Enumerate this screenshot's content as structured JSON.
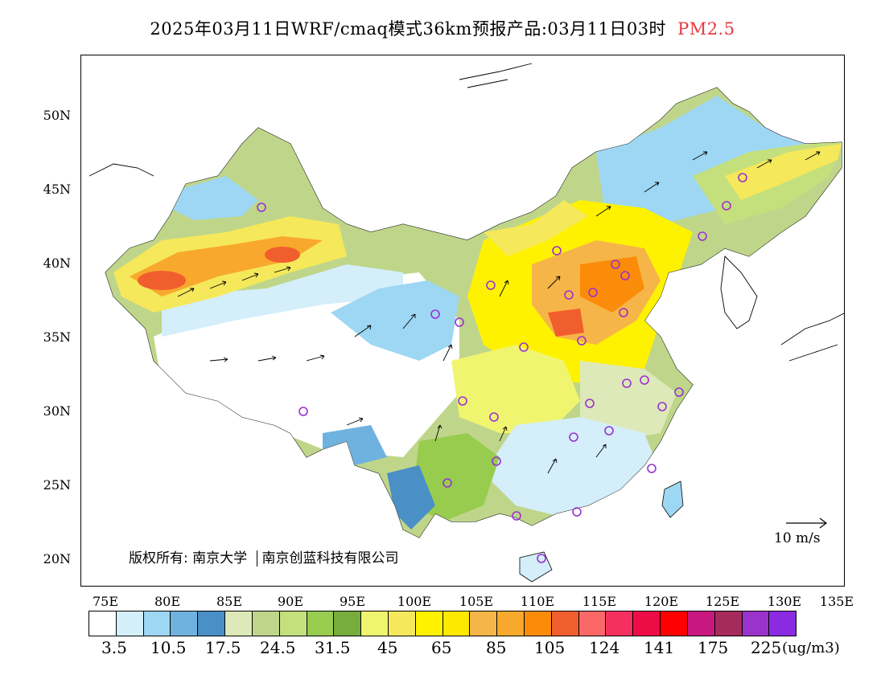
{
  "title": {
    "main": "2025年03月11日WRF/cmaq模式36km预报产品:03月11日03时",
    "species": "PM2.5",
    "species_color": "#e8383d"
  },
  "axes": {
    "lat_labels": [
      "50N",
      "45N",
      "40N",
      "35N",
      "30N",
      "25N",
      "20N"
    ],
    "lon_labels": [
      "75E",
      "80E",
      "85E",
      "90E",
      "95E",
      "100E",
      "105E",
      "110E",
      "115E",
      "120E",
      "125E",
      "130E",
      "135E"
    ]
  },
  "copyright": {
    "left": "版权所有: 南京大学",
    "right": "南京创蓝科技有限公司"
  },
  "wind_scale": {
    "label": "10 m/s"
  },
  "legend": {
    "unit": "(ug/m3)",
    "labels": [
      "3.5",
      "10.5",
      "17.5",
      "24.5",
      "31.5",
      "45",
      "65",
      "85",
      "105",
      "124",
      "141",
      "175",
      "225"
    ],
    "colors": [
      "#ffffff",
      "#d4eefa",
      "#9ed7f3",
      "#6fb2e0",
      "#4a8fc6",
      "#dde9b8",
      "#bfd68a",
      "#c4e07d",
      "#98cc4f",
      "#76ad3c",
      "#f0f56f",
      "#f5e85a",
      "#fff200",
      "#fde800",
      "#f6b548",
      "#f8a92d",
      "#fa8c0a",
      "#f15e2e",
      "#fb6868",
      "#f6305e",
      "#ee0c46",
      "#fe0000",
      "#c8177e",
      "#a42b5c",
      "#9933cc",
      "#8a2be2"
    ]
  }
}
